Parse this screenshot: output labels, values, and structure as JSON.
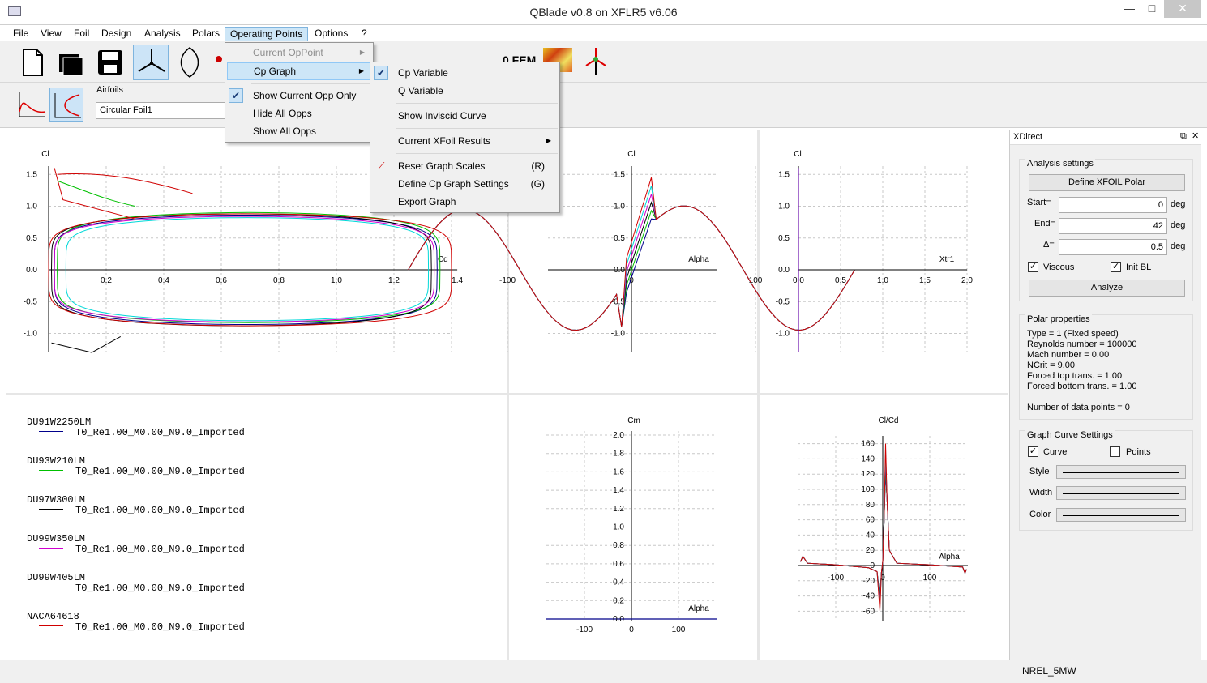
{
  "window": {
    "title": "QBlade v0.8 on XFLR5 v6.06",
    "min": "—",
    "max": "□",
    "close": "✕"
  },
  "menubar": [
    "File",
    "View",
    "Foil",
    "Design",
    "Analysis",
    "Polars",
    "Operating Points",
    "Options",
    "?"
  ],
  "toolbar2": {
    "airfoils_label": "Airfoils",
    "airfoil_selected": "Circular Foil1"
  },
  "menu_operating_points": {
    "items": [
      {
        "label": "Current OpPoint",
        "disabled": true
      },
      {
        "label": "Cp Graph",
        "submenu": true
      },
      {
        "label": "Show Current Opp Only",
        "checked": true
      },
      {
        "label": "Hide All Opps"
      },
      {
        "label": "Show All Opps"
      }
    ]
  },
  "menu_cp_graph": {
    "items": [
      {
        "label": "Cp Variable",
        "checked": true
      },
      {
        "label": "Q Variable"
      },
      {
        "label": "Show Inviscid Curve"
      },
      {
        "label": "Current XFoil Results",
        "submenu": true
      },
      {
        "label": "Reset Graph Scales",
        "shortcut": "(R)"
      },
      {
        "label": "Define Cp Graph Settings",
        "shortcut": "(G)"
      },
      {
        "label": "Export Graph"
      }
    ]
  },
  "graphs": {
    "polar": {
      "ylabel": "Cl",
      "xlabel": "Cd",
      "xticks": [
        "0.2",
        "0.4",
        "0.6",
        "0.8",
        "1.0",
        "1.2"
      ],
      "yticks": [
        "1.5",
        "1.0",
        "0.5",
        "0.0",
        "-0.5",
        "-1.0"
      ],
      "xlabel_overlap": "1.4"
    },
    "cl_alpha": {
      "ylabel": "Cl",
      "xlabel": "Alpha",
      "xticks": [
        "-100",
        "0",
        "100"
      ],
      "yticks": [
        "1.5",
        "1.0",
        "0.5",
        "0.0",
        "-0.5",
        "-1.0"
      ]
    },
    "cl_xtr": {
      "ylabel": "Cl",
      "xlabel": "Xtr1",
      "xticks": [
        "0.0",
        "0.5",
        "1.0",
        "1.5",
        "2.0"
      ],
      "yticks": [
        "1.5",
        "1.0",
        "0.5",
        "0.0",
        "-0.5",
        "-1.0"
      ]
    },
    "cm_alpha": {
      "ylabel": "Cm",
      "xlabel": "Alpha",
      "xticks": [
        "-100",
        "0",
        "100"
      ],
      "yticks": [
        "2.0",
        "1.8",
        "1.6",
        "1.4",
        "1.2",
        "1.0",
        "0.8",
        "0.6",
        "0.4",
        "0.2",
        "0.0"
      ]
    },
    "clcd_alpha": {
      "ylabel": "Cl/Cd",
      "xlabel": "Alpha",
      "xticks": [
        "-100",
        "0",
        "100"
      ],
      "yticks": [
        "160",
        "140",
        "120",
        "100",
        "80",
        "60",
        "40",
        "20",
        "0",
        "-20",
        "-40",
        "-60"
      ]
    }
  },
  "legend": [
    {
      "name": "DU91W2250LM",
      "polar": "T0_Re1.00_M0.00_N9.0_Imported",
      "color": "#00008b"
    },
    {
      "name": "DU93W210LM",
      "polar": "T0_Re1.00_M0.00_N9.0_Imported",
      "color": "#00c000"
    },
    {
      "name": "DU97W300LM",
      "polar": "T0_Re1.00_M0.00_N9.0_Imported",
      "color": "#000000"
    },
    {
      "name": "DU99W350LM",
      "polar": "T0_Re1.00_M0.00_N9.0_Imported",
      "color": "#d000d0"
    },
    {
      "name": "DU99W405LM",
      "polar": "T0_Re1.00_M0.00_N9.0_Imported",
      "color": "#00d8d8"
    },
    {
      "name": "NACA64618",
      "polar": "T0_Re1.00_M0.00_N9.0_Imported",
      "color": "#d00000"
    }
  ],
  "panel": {
    "title": "XDirect",
    "analysis": {
      "title": "Analysis settings",
      "define_btn": "Define XFOIL Polar",
      "start_label": "Start=",
      "start": "0",
      "end_label": "End=",
      "end": "42",
      "delta_label": "Δ=",
      "delta": "0.5",
      "unit": "deg",
      "viscous": "Viscous",
      "init_bl": "Init BL",
      "analyze_btn": "Analyze"
    },
    "polar_props": {
      "title": "Polar properties",
      "lines": [
        "Type = 1 (Fixed speed)",
        "Reynolds number = 100000",
        "Mach number = 0.00",
        "NCrit = 9.00",
        "Forced top trans. = 1.00",
        "Forced bottom trans. = 1.00",
        "",
        "Number of data points = 0"
      ]
    },
    "curve": {
      "title": "Graph Curve Settings",
      "curve": "Curve",
      "points": "Points",
      "style": "Style",
      "width": "Width",
      "color": "Color"
    }
  },
  "status": {
    "text": "NREL_5MW"
  }
}
